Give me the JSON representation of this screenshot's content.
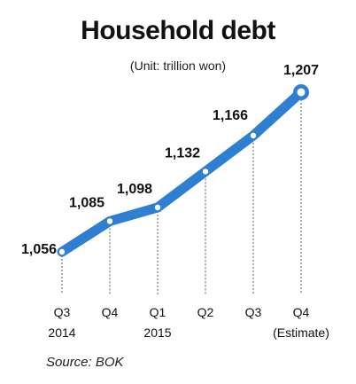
{
  "chart_data": {
    "type": "line",
    "title": "Household debt",
    "subtitle": "(Unit: trillion won)",
    "categories": [
      "Q3",
      "Q4",
      "Q1",
      "Q2",
      "Q3",
      "Q4"
    ],
    "category_sublabels": [
      "2014",
      "",
      "2015",
      "",
      "",
      "(Estimate)"
    ],
    "values": [
      1056,
      1085,
      1098,
      1132,
      1166,
      1207
    ],
    "value_labels": [
      "1,056",
      "1,085",
      "1,098",
      "1,132",
      "1,166",
      "1,207"
    ],
    "line_color": "#2e7fd1",
    "grid": false,
    "source": "Source: BOK"
  }
}
